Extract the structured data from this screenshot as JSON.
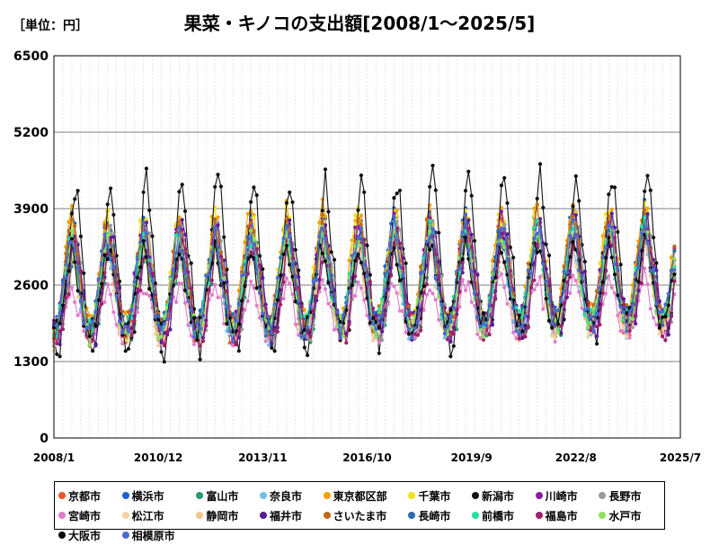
{
  "unit_label": "［単位：円］",
  "chart_data": {
    "type": "line",
    "title": "果菜・キノコの支出額[2008/1～2025/5]",
    "xlabel": "",
    "ylabel": "",
    "ylim": [
      0,
      6500
    ],
    "y_ticks": [
      "0",
      "1300",
      "2600",
      "3900",
      "5200",
      "6500"
    ],
    "y_tick_values": [
      0,
      1300,
      2600,
      3900,
      5200,
      6500
    ],
    "x_ticks": [
      "2008/1",
      "2010/12",
      "2013/11",
      "2016/10",
      "2019/9",
      "2022/8",
      "2025/7"
    ],
    "x_range": [
      "2008/1",
      "2025/7"
    ],
    "grid": true,
    "legend_position": "bottom",
    "seasonal_peak_month": 7,
    "series": [
      {
        "name": "京都市",
        "color": "#e8562a",
        "base": 2450,
        "amp": 1000,
        "offset": 0,
        "noise": 220
      },
      {
        "name": "横浜市",
        "color": "#1f5fd0",
        "base": 2600,
        "amp": 1050,
        "offset": 0,
        "noise": 220
      },
      {
        "name": "富山市",
        "color": "#2a9a6a",
        "base": 2350,
        "amp": 900,
        "offset": 1,
        "noise": 220
      },
      {
        "name": "奈良市",
        "color": "#6ec0e6",
        "base": 2350,
        "amp": 850,
        "offset": 0,
        "noise": 200
      },
      {
        "name": "東京都区部",
        "color": "#f0a000",
        "base": 2700,
        "amp": 1050,
        "offset": 0,
        "noise": 230
      },
      {
        "name": "千葉市",
        "color": "#f2e21a",
        "base": 2600,
        "amp": 1100,
        "offset": 0,
        "noise": 230
      },
      {
        "name": "新潟市",
        "color": "#111111",
        "base": 2700,
        "amp": 1600,
        "offset": 1,
        "noise": 260
      },
      {
        "name": "川崎市",
        "color": "#8a1aa6",
        "base": 2550,
        "amp": 950,
        "offset": 0,
        "noise": 220
      },
      {
        "name": "長野市",
        "color": "#9a9a9a",
        "base": 2450,
        "amp": 1000,
        "offset": 1,
        "noise": 220
      },
      {
        "name": "宮崎市",
        "color": "#e07ccc",
        "base": 2050,
        "amp": 500,
        "offset": 0,
        "noise": 180
      },
      {
        "name": "松江市",
        "color": "#f2d2a8",
        "base": 2300,
        "amp": 800,
        "offset": 0,
        "noise": 220
      },
      {
        "name": "静岡市",
        "color": "#f5c38a",
        "base": 2400,
        "amp": 850,
        "offset": 0,
        "noise": 210
      },
      {
        "name": "福井市",
        "color": "#5a1a9a",
        "base": 2450,
        "amp": 1000,
        "offset": 1,
        "noise": 230
      },
      {
        "name": "さいたま市",
        "color": "#c06a1a",
        "base": 2600,
        "amp": 1000,
        "offset": 0,
        "noise": 220
      },
      {
        "name": "長崎市",
        "color": "#2a6ab0",
        "base": 2500,
        "amp": 850,
        "offset": 0,
        "noise": 210
      },
      {
        "name": "前橋市",
        "color": "#22e0a0",
        "base": 2500,
        "amp": 900,
        "offset": 0,
        "noise": 220
      },
      {
        "name": "福島市",
        "color": "#a0206a",
        "base": 2350,
        "amp": 900,
        "offset": 1,
        "noise": 220
      },
      {
        "name": "水戸市",
        "color": "#8ee05a",
        "base": 2450,
        "amp": 900,
        "offset": 0,
        "noise": 220
      },
      {
        "name": "大阪市",
        "color": "#0a0a0a",
        "base": 2400,
        "amp": 800,
        "offset": 0,
        "noise": 200
      },
      {
        "name": "相模原市",
        "color": "#4a6ad0",
        "base": 2500,
        "amp": 950,
        "offset": 0,
        "noise": 220
      }
    ]
  }
}
